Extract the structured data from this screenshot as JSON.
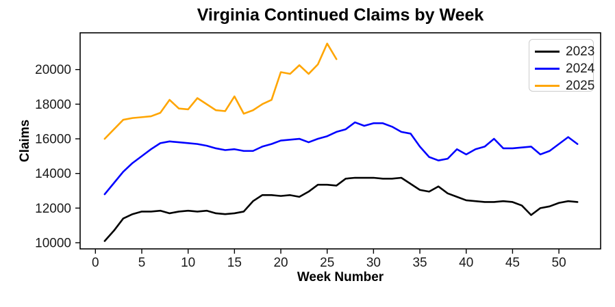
{
  "chart_data": {
    "type": "line",
    "title": "Virginia Continued Claims by Week",
    "xlabel": "Week Number",
    "ylabel": "Claims",
    "grid": false,
    "legend_position": "upper right",
    "x_start_week": 1,
    "xlim": [
      -1.65,
      54.5
    ],
    "ylim": [
      9645,
      22120
    ],
    "xticks": [
      0,
      5,
      10,
      15,
      20,
      25,
      30,
      35,
      40,
      45,
      50
    ],
    "yticks": [
      10000,
      12000,
      14000,
      16000,
      18000,
      20000
    ],
    "series": [
      {
        "name": "2023",
        "color": "#000000",
        "values": [
          10100,
          10700,
          11400,
          11650,
          11800,
          11800,
          11850,
          11700,
          11800,
          11850,
          11800,
          11850,
          11700,
          11650,
          11700,
          11800,
          12400,
          12750,
          12750,
          12700,
          12750,
          12650,
          12950,
          13350,
          13350,
          13300,
          13700,
          13750,
          13750,
          13750,
          13700,
          13700,
          13750,
          13400,
          13050,
          12950,
          13250,
          12850,
          12650,
          12450,
          12400,
          12350,
          12350,
          12400,
          12350,
          12150,
          11600,
          12000,
          12100,
          12300,
          12400,
          12350
        ]
      },
      {
        "name": "2024",
        "color": "#0000ff",
        "values": [
          12800,
          13450,
          14100,
          14600,
          15000,
          15400,
          15750,
          15850,
          15800,
          15750,
          15700,
          15600,
          15450,
          15350,
          15400,
          15300,
          15300,
          15550,
          15700,
          15900,
          15950,
          16000,
          15800,
          16000,
          16150,
          16400,
          16550,
          16950,
          16750,
          16900,
          16900,
          16700,
          16400,
          16300,
          15550,
          14950,
          14750,
          14850,
          15400,
          15100,
          15400,
          15550,
          16000,
          15450,
          15450,
          15500,
          15550,
          15100,
          15300,
          15700,
          16100,
          15700
        ]
      },
      {
        "name": "2025",
        "color": "#ffa500",
        "values": [
          16000,
          16550,
          17100,
          17200,
          17250,
          17300,
          17500,
          18250,
          17750,
          17700,
          18350,
          18000,
          17650,
          17600,
          18450,
          17450,
          17650,
          18000,
          18250,
          19850,
          19750,
          20250,
          19750,
          20300,
          21500,
          20600
        ]
      }
    ]
  }
}
